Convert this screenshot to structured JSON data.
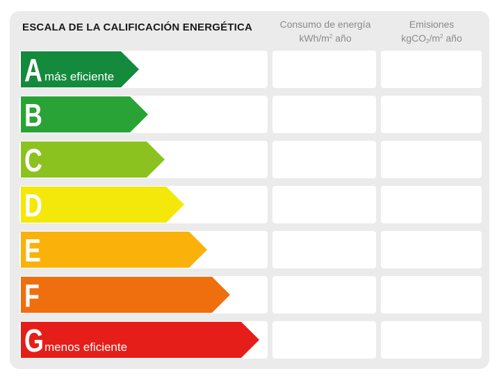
{
  "header": {
    "title": "ESCALA DE LA CALIFICACIÓN ENERGÉTICA",
    "consumo": {
      "line1": "Consumo de energía",
      "line2_prefix": "kWh/m",
      "line2_sup": "2",
      "line2_suffix": " año"
    },
    "emisiones": {
      "line1": "Emisiones",
      "line2_prefix": "kgCO",
      "line2_sub": "2",
      "line2_mid": "/m",
      "line2_sup": "2",
      "line2_suffix": " año"
    }
  },
  "ratings": [
    {
      "letter": "A",
      "caption": "más eficiente",
      "color": "#138a3c",
      "consumo": "",
      "emisiones": ""
    },
    {
      "letter": "B",
      "caption": "",
      "color": "#29a335",
      "consumo": "",
      "emisiones": ""
    },
    {
      "letter": "C",
      "caption": "",
      "color": "#8cc21f",
      "consumo": "",
      "emisiones": ""
    },
    {
      "letter": "D",
      "caption": "",
      "color": "#f4e80b",
      "consumo": "",
      "emisiones": ""
    },
    {
      "letter": "E",
      "caption": "",
      "color": "#fab20a",
      "consumo": "",
      "emisiones": ""
    },
    {
      "letter": "F",
      "caption": "",
      "color": "#ef6f0f",
      "consumo": "",
      "emisiones": ""
    },
    {
      "letter": "G",
      "caption": "menos eficiente",
      "color": "#e61e19",
      "consumo": "",
      "emisiones": ""
    }
  ]
}
